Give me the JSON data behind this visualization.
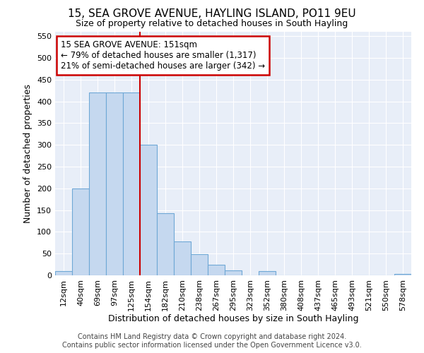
{
  "title": "15, SEA GROVE AVENUE, HAYLING ISLAND, PO11 9EU",
  "subtitle": "Size of property relative to detached houses in South Hayling",
  "xlabel": "Distribution of detached houses by size in South Hayling",
  "ylabel": "Number of detached properties",
  "categories": [
    "12sqm",
    "40sqm",
    "69sqm",
    "97sqm",
    "125sqm",
    "154sqm",
    "182sqm",
    "210sqm",
    "238sqm",
    "267sqm",
    "295sqm",
    "323sqm",
    "352sqm",
    "380sqm",
    "408sqm",
    "437sqm",
    "465sqm",
    "493sqm",
    "521sqm",
    "550sqm",
    "578sqm"
  ],
  "values": [
    10,
    200,
    420,
    420,
    420,
    300,
    143,
    78,
    48,
    25,
    12,
    0,
    10,
    0,
    0,
    0,
    0,
    0,
    0,
    0,
    4
  ],
  "bar_color": "#c5d8ef",
  "bar_edge_color": "#6fa8d6",
  "vline_x_index": 4.5,
  "vline_color": "#cc0000",
  "annotation_text": "15 SEA GROVE AVENUE: 151sqm\n← 79% of detached houses are smaller (1,317)\n21% of semi-detached houses are larger (342) →",
  "annotation_box_edgecolor": "#cc0000",
  "ylim": [
    0,
    560
  ],
  "yticks": [
    0,
    50,
    100,
    150,
    200,
    250,
    300,
    350,
    400,
    450,
    500,
    550
  ],
  "background_color": "#e8eef8",
  "grid_color": "#ffffff",
  "footer_line1": "Contains HM Land Registry data © Crown copyright and database right 2024.",
  "footer_line2": "Contains public sector information licensed under the Open Government Licence v3.0.",
  "title_fontsize": 11,
  "subtitle_fontsize": 9,
  "xlabel_fontsize": 9,
  "ylabel_fontsize": 9,
  "tick_fontsize": 8,
  "footer_fontsize": 7,
  "annot_fontsize": 8.5
}
